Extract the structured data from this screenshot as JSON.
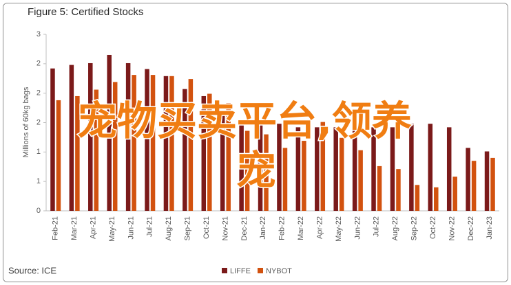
{
  "chart_data": {
    "type": "bar",
    "title": "Figure 5: Certified Stocks",
    "y_label": "Millions of 60kg bags",
    "source": "Source: ICE",
    "categories": [
      "Feb-21",
      "Mar-21",
      "Apr-21",
      "May-21",
      "Jun-21",
      "Jul-21",
      "Aug-21",
      "Sep-21",
      "Oct-21",
      "Nov-21",
      "Dec-21",
      "Jan-22",
      "Feb-22",
      "Mar-22",
      "Apr-22",
      "May-22",
      "Jun-22",
      "Jul-22",
      "Aug-22",
      "Sep-22",
      "Oct-22",
      "Nov-22",
      "Dec-22",
      "Jan-23"
    ],
    "series": [
      {
        "name": "LIFFE",
        "color": "#7b1a1a",
        "values": [
          2.42,
          2.48,
          2.51,
          2.65,
          2.51,
          2.41,
          2.29,
          2.07,
          1.95,
          1.65,
          1.53,
          1.48,
          1.48,
          1.42,
          1.42,
          1.42,
          1.5,
          1.42,
          1.42,
          1.48,
          1.48,
          1.42,
          1.07,
          1.01
        ]
      },
      {
        "name": "NYBOT",
        "color": "#d2520f",
        "values": [
          1.88,
          1.95,
          2.06,
          2.19,
          2.31,
          2.31,
          2.29,
          2.24,
          1.99,
          1.83,
          1.36,
          1.3,
          1.07,
          1.19,
          1.51,
          1.24,
          1.03,
          0.76,
          0.71,
          0.44,
          0.4,
          0.58,
          0.85,
          0.9
        ]
      }
    ],
    "ylim": [
      0,
      3
    ],
    "yticks": [
      0,
      {
        "value": 0.5,
        "label": "1"
      },
      {
        "value": 1,
        "label": "1"
      },
      {
        "value": 1.5,
        "label": "2"
      },
      {
        "value": 2,
        "label": "2"
      },
      {
        "value": 2.5,
        "label": "2"
      },
      3
    ],
    "grid": false,
    "legend": "bottom",
    "overlay_text": [
      "宠物买卖平台,领养",
      "宠"
    ]
  }
}
